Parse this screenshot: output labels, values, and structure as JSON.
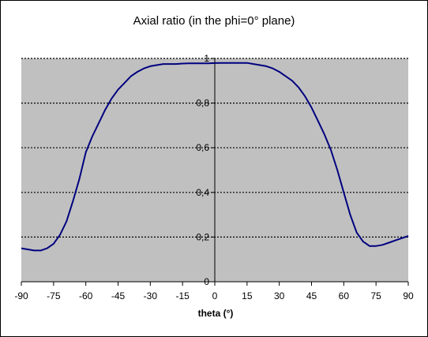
{
  "chart_data": {
    "type": "line",
    "title": "Axial ratio (in the phi=0° plane)",
    "xlabel": "theta (°)",
    "ylabel": "",
    "xlim": [
      -90,
      90
    ],
    "ylim": [
      0,
      1
    ],
    "x_ticks": [
      "-90",
      "-75",
      "-60",
      "-45",
      "-30",
      "-15",
      "0",
      "15",
      "30",
      "45",
      "60",
      "75",
      "90"
    ],
    "y_ticks": [
      "0",
      "0,2",
      "0,4",
      "0,6",
      "0,8",
      "1"
    ],
    "grid": "horizontal dotted",
    "legend": "none",
    "plot_bg": "#c0c0c0",
    "line_color": "#000080",
    "series": [
      {
        "x": [
          -90,
          -87,
          -84,
          -81,
          -78,
          -75,
          -72,
          -69,
          -66,
          -63,
          -60,
          -57,
          -54,
          -51,
          -48,
          -45,
          -42,
          -39,
          -36,
          -33,
          -30,
          -27,
          -24,
          -21,
          -18,
          -15,
          -12,
          -9,
          -6,
          -3,
          0,
          3,
          6,
          9,
          12,
          15,
          18,
          21,
          24,
          27,
          30,
          33,
          36,
          39,
          42,
          45,
          48,
          51,
          54,
          57,
          60,
          63,
          66,
          69,
          72,
          75,
          78,
          81,
          84,
          87,
          90
        ],
        "values": [
          0.15,
          0.145,
          0.14,
          0.14,
          0.15,
          0.17,
          0.21,
          0.27,
          0.36,
          0.46,
          0.58,
          0.65,
          0.71,
          0.77,
          0.82,
          0.86,
          0.89,
          0.92,
          0.94,
          0.955,
          0.965,
          0.97,
          0.975,
          0.975,
          0.975,
          0.977,
          0.978,
          0.978,
          0.978,
          0.978,
          0.979,
          0.98,
          0.98,
          0.98,
          0.98,
          0.98,
          0.975,
          0.97,
          0.965,
          0.955,
          0.94,
          0.92,
          0.9,
          0.87,
          0.83,
          0.78,
          0.72,
          0.66,
          0.59,
          0.5,
          0.4,
          0.3,
          0.22,
          0.18,
          0.16,
          0.16,
          0.165,
          0.175,
          0.185,
          0.195,
          0.205
        ]
      }
    ]
  }
}
